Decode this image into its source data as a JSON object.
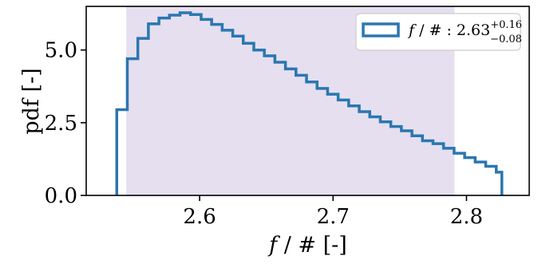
{
  "chart_data": {
    "type": "histogram-step",
    "xlabel": {
      "italic": "f",
      "rest": " / # [-]"
    },
    "ylabel": "pdf [-]",
    "xlim": [
      2.515,
      2.847
    ],
    "ylim": [
      0,
      6.5
    ],
    "xticks": [
      2.6,
      2.7,
      2.8
    ],
    "xtick_labels": [
      "2.6",
      "2.7",
      "2.8"
    ],
    "yticks": [
      0.0,
      2.5,
      5.0
    ],
    "ytick_labels": [
      "0.0",
      "2.5",
      "5.0"
    ],
    "grid": false,
    "credible_interval": {
      "x0": 2.545,
      "x1": 2.791,
      "color": "#e6dff0"
    },
    "series": [
      {
        "color": "#2a77b0",
        "bin_edges": [
          2.5379,
          2.5458,
          2.5537,
          2.5616,
          2.5695,
          2.5774,
          2.5853,
          2.5932,
          2.6011,
          2.609,
          2.6169,
          2.6248,
          2.6327,
          2.6406,
          2.6485,
          2.6564,
          2.6643,
          2.6722,
          2.6801,
          2.688,
          2.6959,
          2.7038,
          2.7117,
          2.7196,
          2.7275,
          2.7354,
          2.7433,
          2.7512,
          2.7591,
          2.767,
          2.7749,
          2.7828,
          2.7907,
          2.7986,
          2.8065,
          2.8144,
          2.8223,
          2.8265
        ],
        "values": [
          2.95,
          4.7,
          5.4,
          5.9,
          6.1,
          6.2,
          6.28,
          6.22,
          6.05,
          5.88,
          5.68,
          5.48,
          5.23,
          5.0,
          4.8,
          4.58,
          4.35,
          4.13,
          3.9,
          3.68,
          3.48,
          3.28,
          3.08,
          2.88,
          2.7,
          2.53,
          2.37,
          2.22,
          2.05,
          1.88,
          1.78,
          1.62,
          1.45,
          1.3,
          1.15,
          1.0,
          0.8
        ]
      }
    ],
    "legend": {
      "position": "upper right",
      "label": {
        "italic": "f",
        "middle": " / # : 2.63",
        "sup": "+0.16",
        "sub": "−0.08"
      }
    }
  }
}
